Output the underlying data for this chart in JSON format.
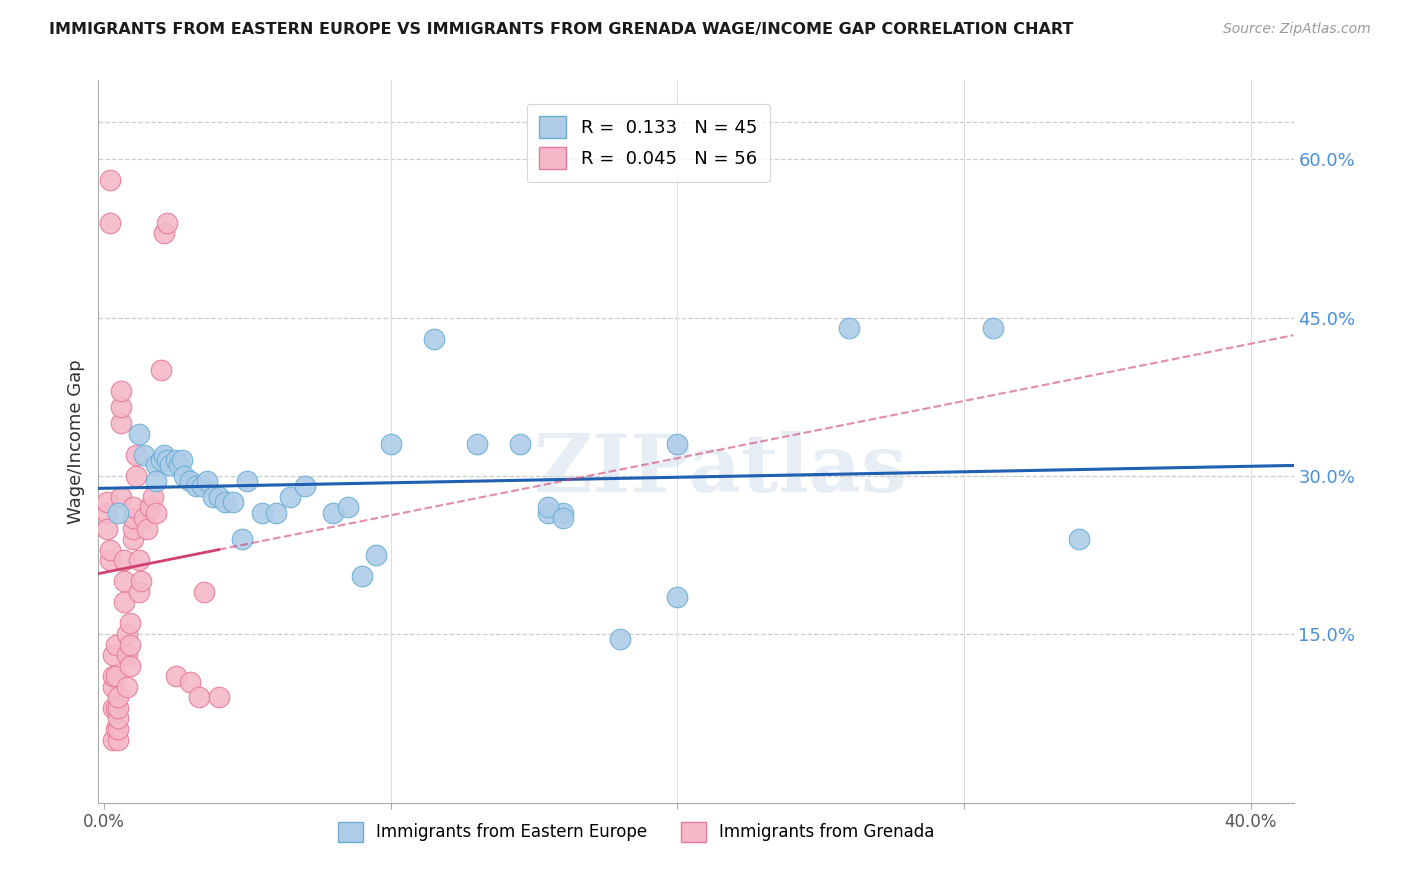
{
  "title": "IMMIGRANTS FROM EASTERN EUROPE VS IMMIGRANTS FROM GRENADA WAGE/INCOME GAP CORRELATION CHART",
  "source": "Source: ZipAtlas.com",
  "ylabel": "Wage/Income Gap",
  "xlim": [
    -0.002,
    0.415
  ],
  "ylim": [
    -0.01,
    0.675
  ],
  "ytick_positions": [
    0.15,
    0.3,
    0.45,
    0.6
  ],
  "ytick_labels": [
    "15.0%",
    "30.0%",
    "45.0%",
    "60.0%"
  ],
  "blue_R": "0.133",
  "blue_N": "45",
  "pink_R": "0.045",
  "pink_N": "56",
  "legend_label_blue": "Immigrants from Eastern Europe",
  "legend_label_pink": "Immigrants from Grenada",
  "blue_color": "#aecce8",
  "blue_edge": "#6aaed6",
  "pink_color": "#f4b8c8",
  "pink_edge": "#e87a9a",
  "trend_blue": "#2060b0",
  "trend_pink": "#d04070",
  "watermark": "ZIPatlas",
  "blue_x": [
    0.005,
    0.012,
    0.014,
    0.018,
    0.018,
    0.02,
    0.021,
    0.022,
    0.023,
    0.025,
    0.026,
    0.027,
    0.028,
    0.03,
    0.032,
    0.034,
    0.036,
    0.038,
    0.04,
    0.042,
    0.045,
    0.048,
    0.05,
    0.055,
    0.06,
    0.065,
    0.07,
    0.08,
    0.085,
    0.09,
    0.095,
    0.1,
    0.115,
    0.13,
    0.145,
    0.155,
    0.16,
    0.18,
    0.2,
    0.26,
    0.31,
    0.34,
    0.155,
    0.16,
    0.2
  ],
  "blue_y": [
    0.265,
    0.34,
    0.32,
    0.31,
    0.295,
    0.315,
    0.32,
    0.315,
    0.31,
    0.315,
    0.31,
    0.315,
    0.3,
    0.295,
    0.29,
    0.29,
    0.295,
    0.28,
    0.28,
    0.275,
    0.275,
    0.24,
    0.295,
    0.265,
    0.265,
    0.28,
    0.29,
    0.265,
    0.27,
    0.205,
    0.225,
    0.33,
    0.43,
    0.33,
    0.33,
    0.265,
    0.265,
    0.145,
    0.185,
    0.44,
    0.44,
    0.24,
    0.27,
    0.26,
    0.33
  ],
  "pink_x": [
    0.001,
    0.001,
    0.001,
    0.002,
    0.002,
    0.002,
    0.002,
    0.003,
    0.003,
    0.003,
    0.003,
    0.003,
    0.004,
    0.004,
    0.004,
    0.004,
    0.005,
    0.005,
    0.005,
    0.005,
    0.005,
    0.006,
    0.006,
    0.006,
    0.006,
    0.007,
    0.007,
    0.007,
    0.008,
    0.008,
    0.008,
    0.009,
    0.009,
    0.009,
    0.01,
    0.01,
    0.01,
    0.01,
    0.011,
    0.011,
    0.012,
    0.012,
    0.013,
    0.014,
    0.015,
    0.016,
    0.017,
    0.018,
    0.02,
    0.021,
    0.022,
    0.025,
    0.03,
    0.033,
    0.035,
    0.04
  ],
  "pink_y": [
    0.265,
    0.275,
    0.25,
    0.58,
    0.54,
    0.22,
    0.23,
    0.05,
    0.08,
    0.1,
    0.11,
    0.13,
    0.06,
    0.08,
    0.11,
    0.14,
    0.05,
    0.06,
    0.07,
    0.08,
    0.09,
    0.35,
    0.365,
    0.38,
    0.28,
    0.18,
    0.2,
    0.22,
    0.1,
    0.13,
    0.15,
    0.12,
    0.14,
    0.16,
    0.24,
    0.25,
    0.26,
    0.27,
    0.3,
    0.32,
    0.19,
    0.22,
    0.2,
    0.26,
    0.25,
    0.27,
    0.28,
    0.265,
    0.4,
    0.53,
    0.54,
    0.11,
    0.105,
    0.09,
    0.19,
    0.09
  ]
}
